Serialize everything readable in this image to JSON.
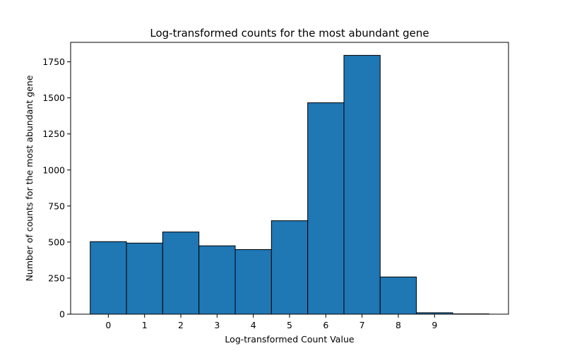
{
  "chart_data": {
    "type": "bar",
    "title": "Log-transformed counts for the most abundant gene",
    "xlabel": "Log-transformed Count Value",
    "ylabel": "Number of counts for the most abundant gene",
    "bin_edges": [
      -0.5,
      0.5,
      1.5,
      2.5,
      3.5,
      4.5,
      5.5,
      6.5,
      7.5,
      8.5,
      9.5,
      10.5
    ],
    "values": [
      503,
      493,
      570,
      474,
      448,
      648,
      1466,
      1795,
      258,
      10,
      2
    ],
    "xticks": [
      0,
      1,
      2,
      3,
      4,
      5,
      6,
      7,
      8,
      9
    ],
    "yticks": [
      0,
      250,
      500,
      750,
      1000,
      1250,
      1500,
      1750
    ],
    "xlim": [
      -1.04,
      11.04
    ],
    "ylim": [
      0,
      1885
    ],
    "grid": false,
    "legend": "none",
    "colors": {
      "bar_fill": "#1f77b4",
      "bar_edge": "#000000"
    }
  }
}
